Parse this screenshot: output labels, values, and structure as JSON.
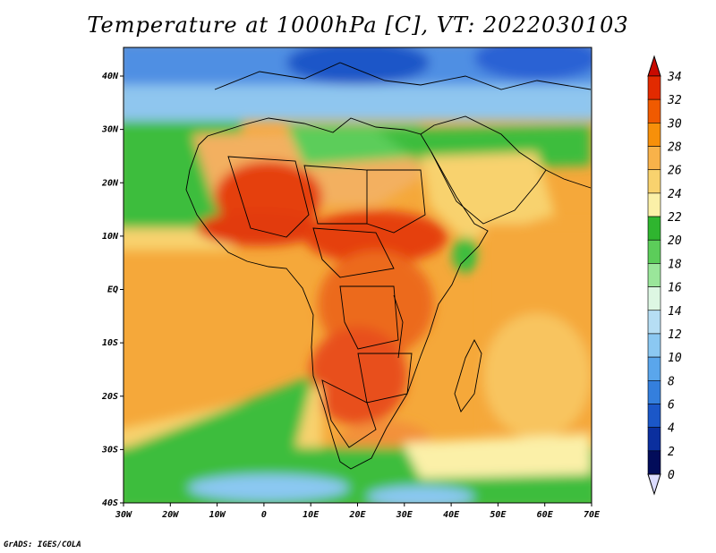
{
  "title": "Temperature at 1000hPa [C], VT: 2022030103",
  "credit": "GrADS: IGES/COLA",
  "lon_ticks": [
    "30W",
    "20W",
    "10W",
    "0",
    "10E",
    "20E",
    "30E",
    "40E",
    "50E",
    "60E",
    "70E"
  ],
  "lat_ticks": [
    "40N",
    "30N",
    "20N",
    "10N",
    "EQ",
    "10S",
    "20S",
    "30S",
    "40S"
  ],
  "colorbar": {
    "levels": [
      "34",
      "32",
      "30",
      "28",
      "26",
      "24",
      "22",
      "20",
      "18",
      "16",
      "14",
      "12",
      "10",
      "8",
      "6",
      "4",
      "2",
      "0"
    ],
    "colors": [
      "#a30000",
      "#e22a00",
      "#f05a00",
      "#f7900a",
      "#f8b24a",
      "#f8d26e",
      "#fbf0a8",
      "#2fb52f",
      "#5ccd5a",
      "#9ae69a",
      "#ddf7e3",
      "#b6def4",
      "#8bc8f2",
      "#5aa6ec",
      "#347fdd",
      "#1b57c8",
      "#0b2f9e",
      "#020c5a"
    ],
    "top_triangle": "#c90a00",
    "bottom_triangle": "#dcdcff"
  },
  "palette": {
    "ocean_warm": "#f5a83a",
    "ocean_mild": "#f8d26e",
    "land_hot": "#e54010",
    "land_warm": "#f3913a",
    "green": "#3cbd3c",
    "cool": "#7fb8ef",
    "cold": "#2c62d4"
  }
}
